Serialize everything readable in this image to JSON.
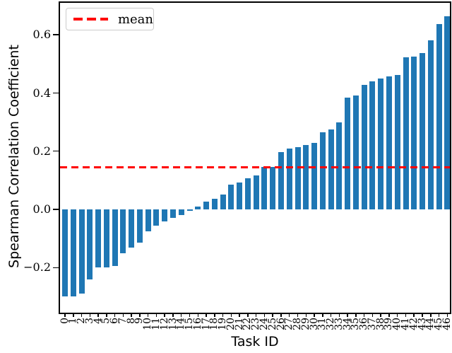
{
  "chart_data": {
    "type": "bar",
    "title": "",
    "xlabel": "Task ID",
    "ylabel": "Spearman Correlation Coefficient",
    "categories": [
      "0",
      "1",
      "2",
      "3",
      "4",
      "5",
      "6",
      "7",
      "8",
      "9",
      "10",
      "11",
      "12",
      "13",
      "14",
      "15",
      "16",
      "17",
      "18",
      "19",
      "20",
      "21",
      "22",
      "23",
      "24",
      "25",
      "26",
      "27",
      "28",
      "29",
      "30",
      "31",
      "32",
      "33",
      "34",
      "35",
      "36",
      "37",
      "38",
      "39",
      "40",
      "41",
      "42",
      "43",
      "44",
      "45",
      "46"
    ],
    "values": [
      -0.3,
      -0.3,
      -0.29,
      -0.24,
      -0.2,
      -0.2,
      -0.195,
      -0.15,
      -0.13,
      -0.115,
      -0.075,
      -0.055,
      -0.04,
      -0.03,
      -0.02,
      -0.005,
      0.011,
      0.026,
      0.036,
      0.051,
      0.085,
      0.093,
      0.106,
      0.117,
      0.145,
      0.146,
      0.197,
      0.209,
      0.213,
      0.222,
      0.228,
      0.264,
      0.275,
      0.298,
      0.385,
      0.391,
      0.428,
      0.44,
      0.449,
      0.458,
      0.462,
      0.522,
      0.526,
      0.538,
      0.582,
      0.637,
      0.663
    ],
    "mean": 0.145,
    "mean_label": "mean",
    "yticks": [
      -0.2,
      0.0,
      0.2,
      0.4,
      0.6
    ],
    "ytick_labels": [
      "−0.2",
      "0.0",
      "0.2",
      "0.4",
      "0.6"
    ],
    "ylim": [
      -0.355,
      0.71
    ],
    "bar_color": "#1f77b4",
    "mean_line_color": "#ff0000",
    "legend_position": "upper left",
    "grid": false
  }
}
